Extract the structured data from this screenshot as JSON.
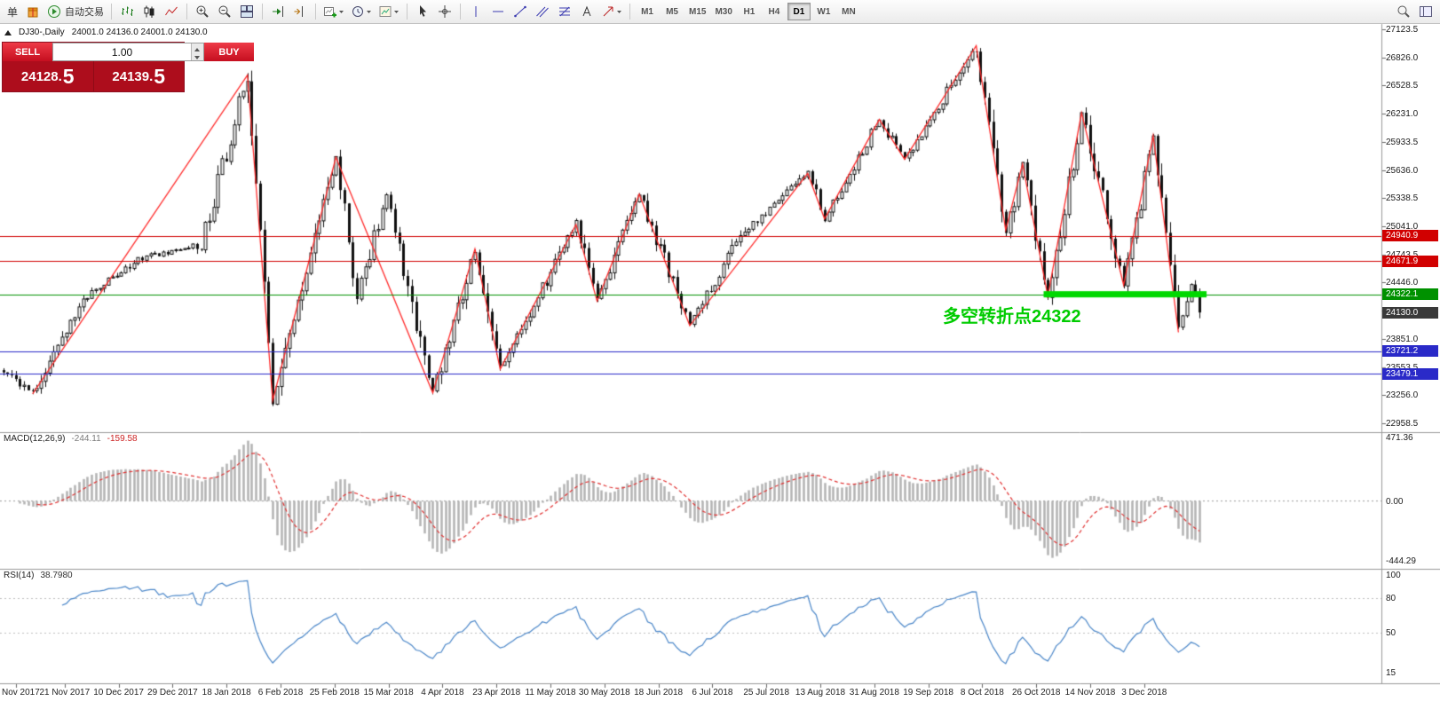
{
  "toolbar": {
    "order_label": "单",
    "autotrade_label": "自动交易",
    "timeframes": [
      "M1",
      "M5",
      "M15",
      "M30",
      "H1",
      "H4",
      "D1",
      "W1",
      "MN"
    ],
    "active_timeframe": "D1",
    "icons": [
      "gift-icon",
      "autotrading-icon",
      "bar-chart-icon",
      "candlestick-chart-icon",
      "line-chart-icon",
      "zoom-in-icon",
      "zoom-out-icon",
      "tile-windows-icon",
      "auto-scroll-icon",
      "chart-shift-icon",
      "new-chart-icon",
      "periods-icon",
      "templates-icon",
      "cursor-icon",
      "crosshair-icon",
      "vertical-line-icon",
      "horizontal-line-icon",
      "trendline-icon",
      "channel-icon",
      "fibonacci-icon",
      "text-tool-icon",
      "arrows-icon",
      "search-icon",
      "window-layout-icon"
    ]
  },
  "symbol_bar": {
    "title": "DJ30-,Daily",
    "ohlc": "24001.0 24136.0 24001.0 24130.0"
  },
  "trade_panel": {
    "sell_label": "SELL",
    "buy_label": "BUY",
    "lot_value": "1.00",
    "sell_price": "24128.",
    "sell_price_big": "5",
    "buy_price": "24139.",
    "buy_price_big": "5"
  },
  "indicators": {
    "macd": {
      "name": "MACD(12,26,9)",
      "value_main": "-244.11",
      "value_signal": "-159.58"
    },
    "rsi": {
      "name": "RSI(14)",
      "value": "38.7980"
    }
  },
  "annotation": {
    "text": "多空转折点24322",
    "color": "#00cc00"
  },
  "chart_data": {
    "type": "candlestick",
    "symbol": "DJ30-",
    "timeframe": "Daily",
    "visible_candles": 285,
    "last_close": 24130.0,
    "price_anchors": [
      [
        0,
        23520
      ],
      [
        7,
        23270
      ],
      [
        19,
        24270
      ],
      [
        32,
        24700
      ],
      [
        47,
        24850
      ],
      [
        58,
        26640
      ],
      [
        64,
        23200
      ],
      [
        79,
        25770
      ],
      [
        84,
        24300
      ],
      [
        91,
        25350
      ],
      [
        102,
        23280
      ],
      [
        112,
        24800
      ],
      [
        118,
        23530
      ],
      [
        136,
        25060
      ],
      [
        141,
        24250
      ],
      [
        151,
        25380
      ],
      [
        163,
        23990
      ],
      [
        175,
        24950
      ],
      [
        191,
        25600
      ],
      [
        195,
        25120
      ],
      [
        208,
        26170
      ],
      [
        214,
        25750
      ],
      [
        231,
        26950
      ],
      [
        238,
        25000
      ],
      [
        242,
        25700
      ],
      [
        248,
        24300
      ],
      [
        256,
        26240
      ],
      [
        266,
        24420
      ],
      [
        273,
        26000
      ],
      [
        279,
        23920
      ],
      [
        282,
        24450
      ],
      [
        284,
        24130
      ]
    ],
    "zigzag_points": [
      [
        7,
        23270
      ],
      [
        58,
        26640
      ],
      [
        64,
        23200
      ],
      [
        79,
        25770
      ],
      [
        102,
        23280
      ],
      [
        112,
        24800
      ],
      [
        118,
        23530
      ],
      [
        136,
        25060
      ],
      [
        141,
        24250
      ],
      [
        151,
        25380
      ],
      [
        163,
        23990
      ],
      [
        191,
        25600
      ],
      [
        195,
        25120
      ],
      [
        208,
        26170
      ],
      [
        214,
        25750
      ],
      [
        231,
        26950
      ],
      [
        238,
        25000
      ],
      [
        242,
        25700
      ],
      [
        248,
        24300
      ],
      [
        256,
        26240
      ],
      [
        266,
        24420
      ],
      [
        273,
        26000
      ],
      [
        279,
        23920
      ]
    ],
    "horizontal_levels": [
      {
        "price": 24940.9,
        "label": "24940.9",
        "color": "#d10000",
        "style": "solid"
      },
      {
        "price": 24671.9,
        "label": "24671.9",
        "color": "#d10000",
        "style": "solid"
      },
      {
        "price": 24322.1,
        "label": "24322.1",
        "color": "#009100",
        "style": "solid"
      },
      {
        "price": 24130.0,
        "label": "24130.0",
        "color": "#3a3a3a",
        "style": "badge-only"
      },
      {
        "price": 23721.2,
        "label": "23721.2",
        "color": "#2a2ac8",
        "style": "solid"
      },
      {
        "price": 23479.1,
        "label": "23479.1",
        "color": "#2a2ac8",
        "style": "solid"
      }
    ],
    "highlight_bar": {
      "price": 24322.1,
      "from_index": 247,
      "to_index": 284,
      "color": "#00d800"
    },
    "price_axis_labels": [
      "27123.5",
      "26826.0",
      "26528.5",
      "26231.0",
      "25933.5",
      "25636.0",
      "25338.5",
      "25041.0",
      "24743.5",
      "24446.0",
      "24148.5",
      "23851.0",
      "23553.5",
      "23256.0",
      "22958.5"
    ],
    "time_axis_labels": [
      "Nov 2017",
      "21 Nov 2017",
      "10 Dec 2017",
      "29 Dec 2017",
      "18 Jan 2018",
      "6 Feb 2018",
      "25 Feb 2018",
      "15 Mar 2018",
      "4 Apr 2018",
      "23 Apr 2018",
      "11 May 2018",
      "30 May 2018",
      "18 Jun 2018",
      "6 Jul 2018",
      "25 Jul 2018",
      "13 Aug 2018",
      "31 Aug 2018",
      "19 Sep 2018",
      "8 Oct 2018",
      "26 Oct 2018",
      "14 Nov 2018",
      "3 Dec 2018"
    ],
    "macd": {
      "axis_labels": [
        "471.36",
        "0.00",
        "-444.29"
      ]
    },
    "rsi": {
      "axis_labels": [
        "100",
        "80",
        "50",
        "15"
      ],
      "levels": [
        80,
        50
      ]
    }
  }
}
